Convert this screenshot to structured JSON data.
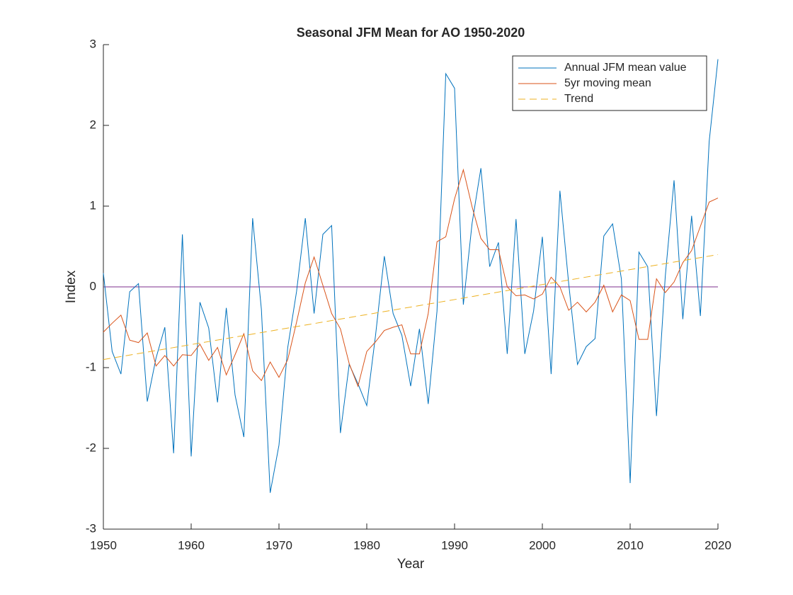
{
  "chart_data": {
    "type": "line",
    "title": "Seasonal JFM Mean for AO 1950-2020",
    "xlabel": "Year",
    "ylabel": "Index",
    "x": [
      1950,
      1951,
      1952,
      1953,
      1954,
      1955,
      1956,
      1957,
      1958,
      1959,
      1960,
      1961,
      1962,
      1963,
      1964,
      1965,
      1966,
      1967,
      1968,
      1969,
      1970,
      1971,
      1972,
      1973,
      1974,
      1975,
      1976,
      1977,
      1978,
      1979,
      1980,
      1981,
      1982,
      1983,
      1984,
      1985,
      1986,
      1987,
      1988,
      1989,
      1990,
      1991,
      1992,
      1993,
      1994,
      1995,
      1996,
      1997,
      1998,
      1999,
      2000,
      2001,
      2002,
      2003,
      2004,
      2005,
      2006,
      2007,
      2008,
      2009,
      2010,
      2011,
      2012,
      2013,
      2014,
      2015,
      2016,
      2017,
      2018,
      2019,
      2020
    ],
    "series": [
      {
        "name": "Annual JFM mean value",
        "color": "#0072bd",
        "values": [
          0.17,
          -0.8,
          -1.08,
          -0.06,
          0.04,
          -1.42,
          -0.88,
          -0.5,
          -2.06,
          0.65,
          -2.1,
          -0.19,
          -0.51,
          -1.43,
          -0.26,
          -1.34,
          -1.86,
          0.85,
          -0.28,
          -2.55,
          -1.96,
          -0.75,
          -0.06,
          0.85,
          -0.33,
          0.65,
          0.76,
          -1.81,
          -0.96,
          -1.2,
          -1.47,
          -0.6,
          0.38,
          -0.33,
          -0.6,
          -1.23,
          -0.52,
          -1.45,
          -0.3,
          2.64,
          2.46,
          -0.22,
          0.79,
          1.47,
          0.25,
          0.55,
          -0.83,
          0.84,
          -0.83,
          -0.3,
          0.62,
          -1.08,
          1.19,
          0.04,
          -0.96,
          -0.74,
          -0.64,
          0.63,
          0.78,
          0.1,
          -2.43,
          0.43,
          0.25,
          -1.6,
          0.13,
          1.32,
          -0.4,
          0.88,
          -0.36,
          1.8,
          2.82
        ]
      },
      {
        "name": "5yr moving mean",
        "color": "#d95319",
        "values": [
          -0.56,
          -0.45,
          -0.35,
          -0.66,
          -0.69,
          -0.57,
          -0.98,
          -0.85,
          -0.98,
          -0.84,
          -0.85,
          -0.71,
          -0.91,
          -0.75,
          -1.09,
          -0.84,
          -0.58,
          -1.04,
          -1.16,
          -0.93,
          -1.12,
          -0.9,
          -0.44,
          0.05,
          0.37,
          0.02,
          -0.33,
          -0.52,
          -0.95,
          -1.23,
          -0.8,
          -0.68,
          -0.54,
          -0.5,
          -0.47,
          -0.83,
          -0.83,
          -0.33,
          0.56,
          0.62,
          1.09,
          1.45,
          0.99,
          0.6,
          0.46,
          0.46,
          0.0,
          -0.11,
          -0.1,
          -0.15,
          -0.09,
          0.12,
          0.0,
          -0.29,
          -0.19,
          -0.31,
          -0.19,
          0.02,
          -0.31,
          -0.1,
          -0.17,
          -0.65,
          -0.65,
          0.1,
          -0.07,
          0.06,
          0.3,
          0.45,
          0.75,
          1.05,
          1.1
        ]
      },
      {
        "name": "Trend",
        "color": "#edb120",
        "dashed": true,
        "x": [
          1950,
          2020
        ],
        "values": [
          -0.9,
          0.4
        ]
      }
    ],
    "hline": {
      "value": 0,
      "color": "#7e2f8e"
    },
    "xlim": [
      1950,
      2020
    ],
    "xticks": [
      1950,
      1960,
      1970,
      1980,
      1990,
      2000,
      2010,
      2020
    ],
    "ylim": [
      -3,
      3
    ],
    "yticks": [
      -3,
      -2,
      -1,
      0,
      1,
      2,
      3
    ],
    "legend": "upper right"
  }
}
